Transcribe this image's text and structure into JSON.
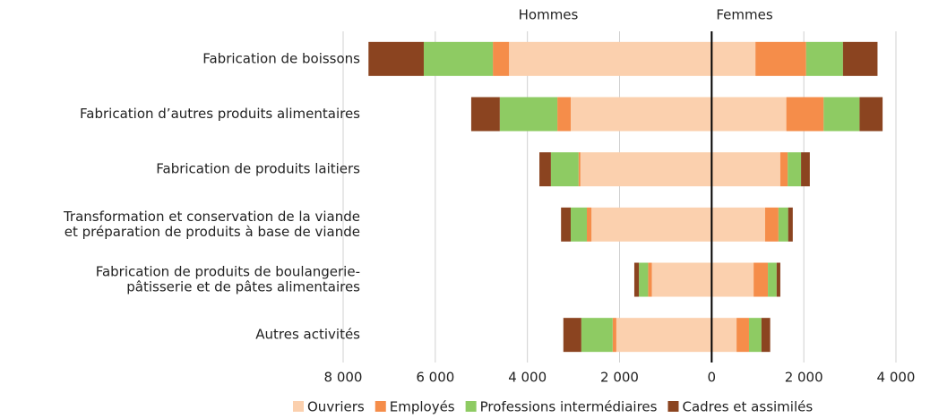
{
  "chart_data": {
    "type": "diverging-stacked-bar",
    "side_labels": [
      "Hommes",
      "Femmes"
    ],
    "categories": [
      [
        "Fabrication de boissons"
      ],
      [
        "Fabrication d’autres produits alimentaires"
      ],
      [
        "Fabrication de produits laitiers"
      ],
      [
        "Transformation et conservation de la viande",
        "et préparation de produits à base de viande"
      ],
      [
        "Fabrication de produits de boulangerie-",
        "pâtisserie et de pâtes alimentaires"
      ],
      [
        "Autres activités"
      ]
    ],
    "series": [
      {
        "name": "Ouvriers",
        "color": "#fbd0ae",
        "hommes": [
          -4400,
          -3060,
          -2850,
          -2610,
          -1300,
          -2070
        ],
        "femmes": [
          950,
          1620,
          1490,
          1160,
          910,
          540
        ]
      },
      {
        "name": "Employés",
        "color": "#f58d4a",
        "hommes": [
          -350,
          -290,
          -40,
          -100,
          -80,
          -80
        ],
        "femmes": [
          1100,
          810,
          160,
          290,
          310,
          270
        ]
      },
      {
        "name": "Professions intermédiaires",
        "color": "#8ecb63",
        "hommes": [
          -1500,
          -1250,
          -600,
          -350,
          -200,
          -680
        ],
        "femmes": [
          800,
          780,
          290,
          210,
          190,
          270
        ]
      },
      {
        "name": "Cadres et assimilés",
        "color": "#8b4420",
        "hommes": [
          -1200,
          -620,
          -250,
          -210,
          -100,
          -390
        ],
        "femmes": [
          750,
          500,
          190,
          100,
          80,
          190
        ]
      }
    ],
    "xlim": [
      -8000,
      4000
    ],
    "xticks": [
      {
        "value": -8000,
        "label": "8 000"
      },
      {
        "value": -6000,
        "label": "6 000"
      },
      {
        "value": -4000,
        "label": "4 000"
      },
      {
        "value": -2000,
        "label": "2 000"
      },
      0,
      {
        "value": 2000,
        "label": "2 000"
      },
      {
        "value": 4000,
        "label": "4 000"
      }
    ],
    "grid": true
  }
}
